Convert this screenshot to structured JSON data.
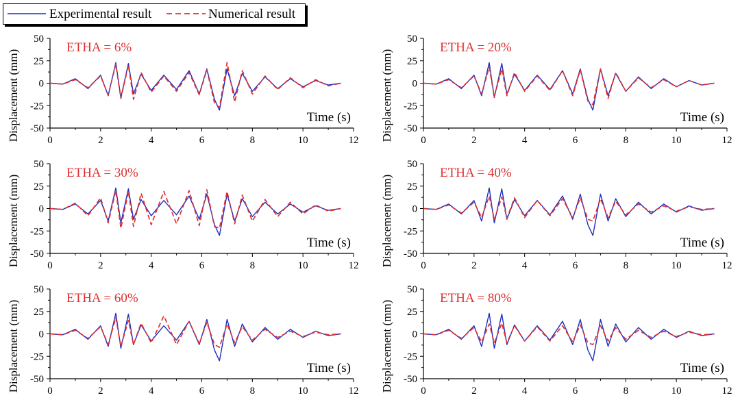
{
  "legend": {
    "experimental_label": "Experimental result",
    "numerical_label": "Numerical result"
  },
  "colors": {
    "experimental": "#1f2fbf",
    "numerical": "#e03030",
    "axis": "#000000",
    "panel_label": "#e03030"
  },
  "chart_data": [
    {
      "type": "line",
      "title": "ETHA = 6%",
      "xlabel": "Time (s)",
      "ylabel": "Displacement (mm)",
      "xlim": [
        0,
        12
      ],
      "ylim": [
        -50,
        50
      ],
      "xticks": [
        "0",
        "2",
        "4",
        "6",
        "8",
        "10",
        "12"
      ],
      "yticks": [
        "50",
        "25",
        "0",
        "-25",
        "-50"
      ],
      "series": [
        {
          "name": "Experimental result",
          "x": [
            0,
            0.5,
            1,
            1.5,
            2,
            2.3,
            2.6,
            2.8,
            3.1,
            3.3,
            3.6,
            4,
            4.5,
            5,
            5.5,
            5.9,
            6.2,
            6.5,
            6.7,
            7,
            7.3,
            7.6,
            8,
            8.5,
            9,
            9.5,
            10,
            10.5,
            11,
            11.5
          ],
          "values": [
            0,
            -1,
            5,
            -6,
            9,
            -14,
            23,
            -16,
            22,
            -12,
            10,
            -8,
            9,
            -7,
            14,
            -12,
            16,
            -18,
            -30,
            16,
            -14,
            11,
            -9,
            7,
            -6,
            5,
            -4,
            3,
            -2,
            0
          ]
        },
        {
          "name": "Numerical result",
          "x": [
            0,
            0.5,
            1,
            1.5,
            2,
            2.3,
            2.6,
            2.8,
            3.1,
            3.3,
            3.6,
            4,
            4.5,
            5,
            5.5,
            5.9,
            6.2,
            6.5,
            6.7,
            7,
            7.3,
            7.6,
            8,
            8.5,
            9,
            9.5,
            10,
            10.5,
            11,
            11.5
          ],
          "values": [
            0,
            -1,
            4,
            -5,
            8,
            -13,
            21,
            -17,
            20,
            -18,
            12,
            -10,
            8,
            -9,
            12,
            -13,
            15,
            -22,
            -27,
            23,
            -21,
            14,
            -12,
            8,
            -7,
            6,
            -5,
            4,
            -3,
            0
          ]
        }
      ]
    },
    {
      "type": "line",
      "title": "ETHA = 20%",
      "xlabel": "Time (s)",
      "ylabel": "Displacement (mm)",
      "xlim": [
        0,
        12
      ],
      "ylim": [
        -50,
        50
      ],
      "xticks": [
        "0",
        "2",
        "4",
        "6",
        "8",
        "10",
        "12"
      ],
      "yticks": [
        "50",
        "25",
        "0",
        "-25",
        "-50"
      ],
      "series": [
        {
          "name": "Experimental result",
          "x": [
            0,
            0.5,
            1,
            1.5,
            2,
            2.3,
            2.6,
            2.8,
            3.1,
            3.3,
            3.6,
            4,
            4.5,
            5,
            5.5,
            5.9,
            6.2,
            6.5,
            6.7,
            7,
            7.3,
            7.6,
            8,
            8.5,
            9,
            9.5,
            10,
            10.5,
            11,
            11.5
          ],
          "values": [
            0,
            -1,
            5,
            -6,
            9,
            -14,
            23,
            -16,
            22,
            -12,
            10,
            -8,
            9,
            -7,
            14,
            -12,
            16,
            -18,
            -30,
            16,
            -14,
            11,
            -9,
            7,
            -6,
            5,
            -4,
            3,
            -2,
            0
          ]
        },
        {
          "name": "Numerical result",
          "x": [
            0,
            0.5,
            1,
            1.5,
            2,
            2.3,
            2.6,
            2.8,
            3.1,
            3.3,
            3.6,
            4,
            4.5,
            5,
            5.5,
            5.9,
            6.2,
            6.5,
            6.7,
            7,
            7.3,
            7.6,
            8,
            8.5,
            9,
            9.5,
            10,
            10.5,
            11,
            11.5
          ],
          "values": [
            0,
            -1,
            4,
            -5,
            8,
            -12,
            18,
            -15,
            16,
            -14,
            12,
            -9,
            8,
            -8,
            14,
            -14,
            15,
            -20,
            -24,
            16,
            -17,
            12,
            -9,
            6,
            -5,
            4,
            -4,
            3,
            -2,
            0
          ]
        }
      ]
    },
    {
      "type": "line",
      "title": "ETHA = 30%",
      "xlabel": "Time (s)",
      "ylabel": "Displacement (mm)",
      "xlim": [
        0,
        12
      ],
      "ylim": [
        -50,
        50
      ],
      "xticks": [
        "0",
        "2",
        "4",
        "6",
        "8",
        "10",
        "12"
      ],
      "yticks": [
        "50",
        "25",
        "0",
        "-25",
        "-50"
      ],
      "series": [
        {
          "name": "Experimental result",
          "x": [
            0,
            0.5,
            1,
            1.5,
            2,
            2.3,
            2.6,
            2.8,
            3.1,
            3.3,
            3.6,
            4,
            4.5,
            5,
            5.5,
            5.9,
            6.2,
            6.5,
            6.7,
            7,
            7.3,
            7.6,
            8,
            8.5,
            9,
            9.5,
            10,
            10.5,
            11,
            11.5
          ],
          "values": [
            0,
            -1,
            5,
            -6,
            9,
            -14,
            23,
            -16,
            22,
            -12,
            10,
            -8,
            9,
            -7,
            14,
            -12,
            16,
            -18,
            -30,
            16,
            -14,
            11,
            -9,
            7,
            -6,
            5,
            -4,
            3,
            -2,
            0
          ]
        },
        {
          "name": "Numerical result",
          "x": [
            0,
            0.5,
            1,
            1.5,
            2,
            2.3,
            2.6,
            2.8,
            3.1,
            3.3,
            3.6,
            4,
            4.5,
            5,
            5.5,
            5.9,
            6.2,
            6.5,
            6.7,
            7,
            7.3,
            7.6,
            8,
            8.5,
            9,
            9.5,
            10,
            10.5,
            11,
            11.5
          ],
          "values": [
            0,
            -1,
            6,
            -8,
            12,
            -16,
            20,
            -22,
            19,
            -20,
            17,
            -18,
            19,
            -17,
            20,
            -19,
            21,
            -20,
            -22,
            19,
            -17,
            15,
            -14,
            10,
            -9,
            7,
            -6,
            4,
            -3,
            0
          ]
        }
      ]
    },
    {
      "type": "line",
      "title": "ETHA = 40%",
      "xlabel": "Time (s)",
      "ylabel": "Displacement (mm)",
      "xlim": [
        0,
        12
      ],
      "ylim": [
        -50,
        50
      ],
      "xticks": [
        "0",
        "2",
        "4",
        "6",
        "8",
        "10",
        "12"
      ],
      "yticks": [
        "50",
        "25",
        "0",
        "-25",
        "-50"
      ],
      "series": [
        {
          "name": "Experimental result",
          "x": [
            0,
            0.5,
            1,
            1.5,
            2,
            2.3,
            2.6,
            2.8,
            3.1,
            3.3,
            3.6,
            4,
            4.5,
            5,
            5.5,
            5.9,
            6.2,
            6.5,
            6.7,
            7,
            7.3,
            7.6,
            8,
            8.5,
            9,
            9.5,
            10,
            10.5,
            11,
            11.5
          ],
          "values": [
            0,
            -1,
            5,
            -6,
            9,
            -14,
            23,
            -16,
            22,
            -12,
            10,
            -8,
            9,
            -7,
            14,
            -12,
            16,
            -18,
            -30,
            16,
            -14,
            11,
            -9,
            7,
            -6,
            5,
            -4,
            3,
            -2,
            0
          ]
        },
        {
          "name": "Numerical result",
          "x": [
            0,
            0.5,
            1,
            1.5,
            2,
            2.3,
            2.6,
            2.8,
            3.1,
            3.3,
            3.6,
            4,
            4.5,
            5,
            5.5,
            5.9,
            6.2,
            6.5,
            6.7,
            7,
            7.3,
            7.6,
            8,
            8.5,
            9,
            9.5,
            10,
            10.5,
            11,
            11.5
          ],
          "values": [
            0,
            -1,
            4,
            -5,
            7,
            -10,
            14,
            -12,
            13,
            -11,
            12,
            -10,
            9,
            -8,
            11,
            -10,
            12,
            -12,
            -14,
            11,
            -10,
            8,
            -7,
            5,
            -4,
            3,
            -3,
            2,
            -1,
            0
          ]
        }
      ]
    },
    {
      "type": "line",
      "title": "ETHA = 60%",
      "xlabel": "Time (s)",
      "ylabel": "Displacement (mm)",
      "xlim": [
        0,
        12
      ],
      "ylim": [
        -50,
        50
      ],
      "xticks": [
        "0",
        "2",
        "4",
        "6",
        "8",
        "10",
        "12"
      ],
      "yticks": [
        "50",
        "25",
        "0",
        "-25",
        "-50"
      ],
      "series": [
        {
          "name": "Experimental result",
          "x": [
            0,
            0.5,
            1,
            1.5,
            2,
            2.3,
            2.6,
            2.8,
            3.1,
            3.3,
            3.6,
            4,
            4.5,
            5,
            5.5,
            5.9,
            6.2,
            6.5,
            6.7,
            7,
            7.3,
            7.6,
            8,
            8.5,
            9,
            9.5,
            10,
            10.5,
            11,
            11.5
          ],
          "values": [
            0,
            -1,
            5,
            -6,
            9,
            -14,
            23,
            -16,
            22,
            -12,
            10,
            -8,
            9,
            -7,
            14,
            -12,
            16,
            -18,
            -30,
            16,
            -14,
            11,
            -9,
            7,
            -6,
            5,
            -4,
            3,
            -2,
            0
          ]
        },
        {
          "name": "Numerical result",
          "x": [
            0,
            0.5,
            1,
            1.5,
            2,
            2.3,
            2.6,
            2.8,
            3.1,
            3.3,
            3.6,
            4,
            4.5,
            5,
            5.5,
            5.9,
            6.2,
            6.5,
            6.7,
            7,
            7.3,
            7.6,
            8,
            8.5,
            9,
            9.5,
            10,
            10.5,
            11,
            11.5
          ],
          "values": [
            0,
            -1,
            4,
            -5,
            8,
            -12,
            18,
            -14,
            15,
            -12,
            12,
            -10,
            20,
            -12,
            14,
            -11,
            13,
            -12,
            -15,
            11,
            -10,
            8,
            -7,
            5,
            -4,
            3,
            -3,
            2,
            -1,
            0
          ]
        }
      ]
    },
    {
      "type": "line",
      "title": "ETHA = 80%",
      "xlabel": "Time (s)",
      "ylabel": "Displacement (mm)",
      "xlim": [
        0,
        12
      ],
      "ylim": [
        -50,
        50
      ],
      "xticks": [
        "0",
        "2",
        "4",
        "6",
        "8",
        "10",
        "12"
      ],
      "yticks": [
        "50",
        "25",
        "0",
        "-25",
        "-50"
      ],
      "series": [
        {
          "name": "Experimental result",
          "x": [
            0,
            0.5,
            1,
            1.5,
            2,
            2.3,
            2.6,
            2.8,
            3.1,
            3.3,
            3.6,
            4,
            4.5,
            5,
            5.5,
            5.9,
            6.2,
            6.5,
            6.7,
            7,
            7.3,
            7.6,
            8,
            8.5,
            9,
            9.5,
            10,
            10.5,
            11,
            11.5
          ],
          "values": [
            0,
            -1,
            5,
            -6,
            9,
            -14,
            23,
            -16,
            22,
            -12,
            10,
            -8,
            9,
            -7,
            14,
            -12,
            16,
            -18,
            -30,
            16,
            -14,
            11,
            -9,
            7,
            -6,
            5,
            -4,
            3,
            -2,
            0
          ]
        },
        {
          "name": "Numerical result",
          "x": [
            0,
            0.5,
            1,
            1.5,
            2,
            2.3,
            2.6,
            2.8,
            3.1,
            3.3,
            3.6,
            4,
            4.5,
            5,
            5.5,
            5.9,
            6.2,
            6.5,
            6.7,
            7,
            7.3,
            7.6,
            8,
            8.5,
            9,
            9.5,
            10,
            10.5,
            11,
            11.5
          ],
          "values": [
            0,
            -1,
            4,
            -5,
            7,
            -9,
            11,
            -10,
            12,
            -10,
            9,
            -8,
            8,
            -8,
            9,
            -9,
            10,
            -10,
            -12,
            9,
            -8,
            7,
            -6,
            4,
            -4,
            3,
            -3,
            2,
            -1,
            0
          ]
        }
      ]
    }
  ]
}
